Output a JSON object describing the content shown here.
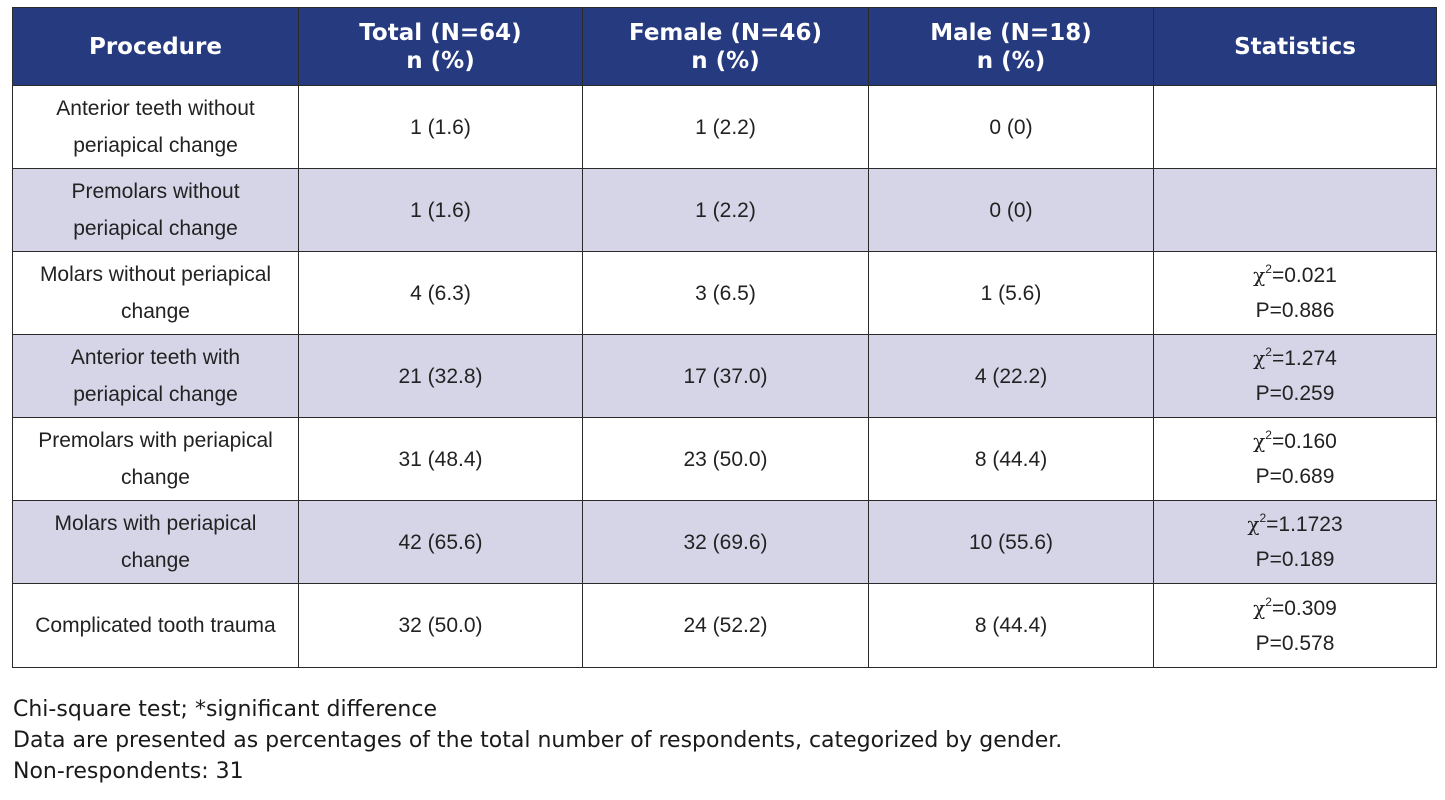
{
  "table": {
    "headers": [
      {
        "line1": "Procedure",
        "line2": ""
      },
      {
        "line1": "Total (N=64)",
        "line2": "n (%)"
      },
      {
        "line1": "Female (N=46)",
        "line2": "n (%)"
      },
      {
        "line1": "Male (N=18)",
        "line2": "n (%)"
      },
      {
        "line1": "Statistics",
        "line2": ""
      }
    ],
    "rows": [
      {
        "procedure": "Anterior teeth without periapical change",
        "total": "1 (1.6)",
        "female": "1 (2.2)",
        "male": "0 (0)",
        "chi": "",
        "p": ""
      },
      {
        "procedure": "Premolars without periapical change",
        "total": "1 (1.6)",
        "female": "1 (2.2)",
        "male": "0 (0)",
        "chi": "",
        "p": ""
      },
      {
        "procedure": "Molars without periapical change",
        "total": "4 (6.3)",
        "female": "3 (6.5)",
        "male": "1 (5.6)",
        "chi": "=0.021",
        "p": "P=0.886"
      },
      {
        "procedure": "Anterior teeth with periapical change",
        "total": "21 (32.8)",
        "female": "17 (37.0)",
        "male": "4 (22.2)",
        "chi": "=1.274",
        "p": "P=0.259"
      },
      {
        "procedure": "Premolars with periapical change",
        "total": "31 (48.4)",
        "female": "23 (50.0)",
        "male": "8 (44.4)",
        "chi": "=0.160",
        "p": "P=0.689"
      },
      {
        "procedure": "Molars with periapical change",
        "total": "42 (65.6)",
        "female": "32 (69.6)",
        "male": "10 (55.6)",
        "chi": "=1.1723",
        "p": "P=0.189"
      },
      {
        "procedure": "Complicated tooth trauma",
        "total": "32 (50.0)",
        "female": "24 (52.2)",
        "male": "8 (44.4)",
        "chi": "=0.309",
        "p": "P=0.578"
      }
    ],
    "stat_symbol": "χ",
    "stat_superscript": "2"
  },
  "footnotes": {
    "line1": "Chi-square test; *significant difference",
    "line2": "Data are presented as percentages of the total number of respondents, categorized by gender.",
    "line3": "Non-respondents: 31"
  },
  "colors": {
    "header_bg": "#263a80",
    "header_text": "#ffffff",
    "row_alt_bg": "#d6d5e8",
    "border": "#2a2a2a"
  }
}
